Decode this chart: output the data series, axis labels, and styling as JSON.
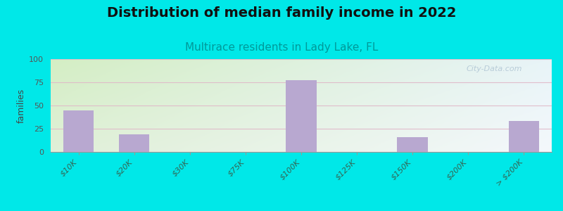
{
  "title": "Distribution of median family income in 2022",
  "subtitle": "Multirace residents in Lady Lake, FL",
  "ylabel": "families",
  "categories": [
    "$10K",
    "$20K",
    "$30K",
    "$75K",
    "$100K",
    "$125K",
    "$150K",
    "$200K",
    "> $200K"
  ],
  "values": [
    45,
    19,
    0,
    0,
    77,
    0,
    16,
    0,
    33
  ],
  "bar_color": "#b8a8d0",
  "background_outer": "#00e8e8",
  "background_inner_topleft": "#d4eec4",
  "background_inner_bottomright": "#e8eef8",
  "grid_color": "#e0b8c8",
  "ylim": [
    0,
    100
  ],
  "yticks": [
    0,
    25,
    50,
    75,
    100
  ],
  "title_fontsize": 14,
  "subtitle_fontsize": 11,
  "ylabel_fontsize": 9,
  "tick_label_color": "#336655",
  "watermark": "City-Data.com",
  "watermark_color": "#b8ccd8"
}
